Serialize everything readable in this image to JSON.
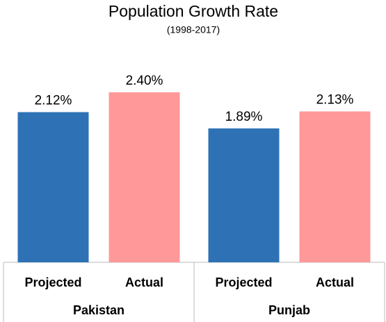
{
  "chart_data": {
    "type": "bar",
    "title": "Population Growth Rate",
    "subtitle": "(1998-2017)",
    "categories": [
      "Pakistan",
      "Punjab"
    ],
    "series": [
      {
        "name": "Projected",
        "color": "#2e72b5",
        "values": [
          2.12,
          1.89
        ],
        "value_labels": [
          "2.12%",
          "1.89%"
        ]
      },
      {
        "name": "Actual",
        "color": "#ff9999",
        "values": [
          2.4,
          2.13
        ],
        "value_labels": [
          "2.40%",
          "2.13%"
        ]
      }
    ]
  }
}
